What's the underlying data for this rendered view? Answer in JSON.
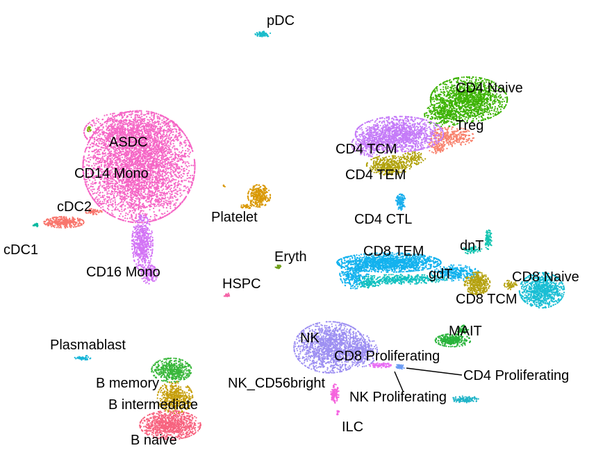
{
  "chart_data": {
    "type": "scatter",
    "title": "",
    "xlabel": "",
    "ylabel": "",
    "axes_visible": false,
    "grid": false,
    "legend": "none",
    "clusters": [
      {
        "label": "pDC",
        "color": "#1bbccb"
      },
      {
        "label": "CD4 Naive",
        "color": "#3db304"
      },
      {
        "label": "Treg",
        "color": "#f8836e"
      },
      {
        "label": "CD4 TCM",
        "color": "#c57bf8"
      },
      {
        "label": "CD4 TEM",
        "color": "#b1a20c"
      },
      {
        "label": "CD4 CTL",
        "color": "#19aeed"
      },
      {
        "label": "ASDC",
        "color": "#7cae00"
      },
      {
        "label": "CD14 Mono",
        "color": "#f567c6"
      },
      {
        "label": "cDC2",
        "color": "#f8766d"
      },
      {
        "label": "cDC1",
        "color": "#0ab9a0"
      },
      {
        "label": "CD16 Mono",
        "color": "#d374f5"
      },
      {
        "label": "Platelet",
        "color": "#d99804"
      },
      {
        "label": "Eryth",
        "color": "#6e9f19"
      },
      {
        "label": "HSPC",
        "color": "#f565a8"
      },
      {
        "label": "CD8 TEM",
        "color": "#13b2ee"
      },
      {
        "label": "dnT",
        "color": "#12c4b0"
      },
      {
        "label": "gdT",
        "color": "#11c1c0"
      },
      {
        "label": "CD8 TCM",
        "color": "#b5a211"
      },
      {
        "label": "CD8 Naive",
        "color": "#1abed4"
      },
      {
        "label": "MAIT",
        "color": "#28b33a"
      },
      {
        "label": "NK",
        "color": "#9e90f2"
      },
      {
        "label": "CD8 Proliferating",
        "color": "#e86df4"
      },
      {
        "label": "CD4 Proliferating",
        "color": "#6a9bf4"
      },
      {
        "label": "NK Proliferating",
        "color": "#20b4c8"
      },
      {
        "label": "NK_CD56bright",
        "color": "#f565dd"
      },
      {
        "label": "ILC",
        "color": "#f564e3"
      },
      {
        "label": "Plasmablast",
        "color": "#17b5d8"
      },
      {
        "label": "B memory",
        "color": "#39b73b"
      },
      {
        "label": "B intermediate",
        "color": "#c69f0c"
      },
      {
        "label": "B naive",
        "color": "#f7637f"
      }
    ]
  }
}
